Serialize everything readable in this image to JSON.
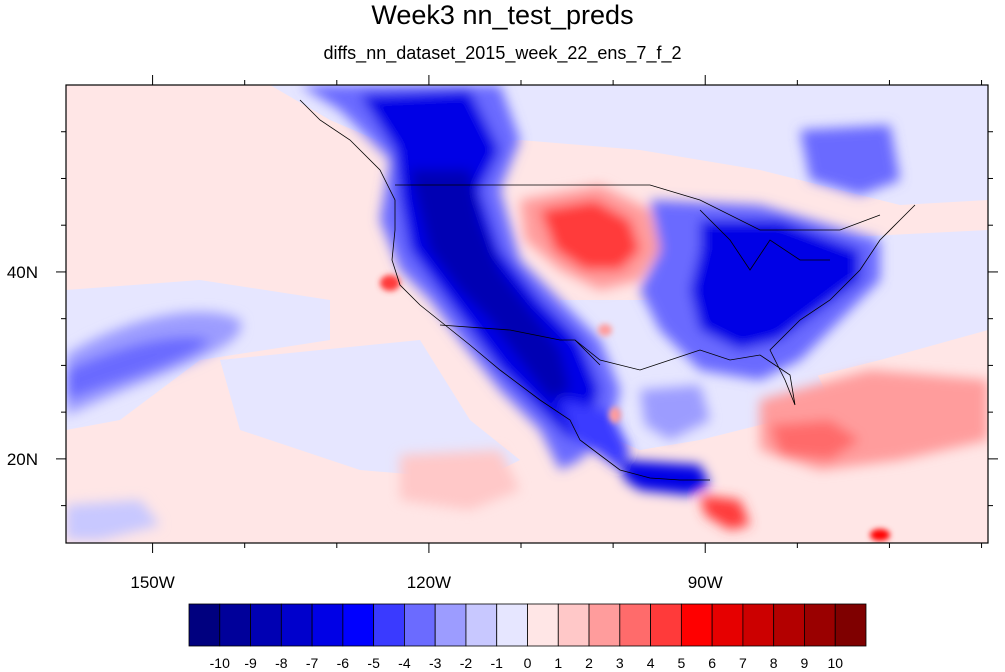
{
  "title": "Week3 nn_test_preds",
  "subtitle": "diffs_nn_dataset_2015_week_22_ens_7_f_2",
  "axes": {
    "x_ticks": [
      {
        "value": -150,
        "label": "150W"
      },
      {
        "value": -120,
        "label": "120W"
      },
      {
        "value": -90,
        "label": "90W"
      }
    ],
    "y_ticks": [
      {
        "value": 20,
        "label": "20N"
      },
      {
        "value": 40,
        "label": "40N"
      }
    ],
    "lon_range": [
      -159.4,
      -59.3
    ],
    "lat_range": [
      11.0,
      60.0
    ]
  },
  "colorbar": {
    "labels": [
      "-10",
      "-9",
      "-8",
      "-7",
      "-6",
      "-5",
      "-4",
      "-3",
      "-2",
      "-1",
      "0",
      "1",
      "2",
      "3",
      "4",
      "5",
      "6",
      "7",
      "8",
      "9",
      "10"
    ],
    "colors": [
      "#00007f",
      "#00009a",
      "#0000b3",
      "#0000cc",
      "#0000e6",
      "#0000ff",
      "#3a3aff",
      "#6b6bff",
      "#9c9cff",
      "#c8c8ff",
      "#e6e6ff",
      "#ffe6e6",
      "#ffc8c8",
      "#ff9c9c",
      "#ff6b6b",
      "#ff3a3a",
      "#ff0000",
      "#e60000",
      "#cc0000",
      "#b30000",
      "#9a0000",
      "#7f0000"
    ]
  },
  "chart_data": {
    "type": "heatmap",
    "title": "Week3 nn_test_preds",
    "subtitle": "diffs_nn_dataset_2015_week_22_ens_7_f_2",
    "xlabel": "",
    "ylabel": "",
    "x_range": [
      -159.4,
      -59.3
    ],
    "y_range": [
      11.0,
      60.0
    ],
    "levels": [
      -10,
      -9,
      -8,
      -7,
      -6,
      -5,
      -4,
      -3,
      -2,
      -1,
      0,
      1,
      2,
      3,
      4,
      5,
      6,
      7,
      8,
      9,
      10
    ],
    "background_value": 0.5,
    "regions": [
      {
        "lon": -115,
        "lat": 38,
        "rx": 12,
        "ry": 14,
        "value": -7.5
      },
      {
        "lon": -117,
        "lat": 46,
        "rx": 7,
        "ry": 6,
        "value": -10
      },
      {
        "lon": -108,
        "lat": 30,
        "rx": 7,
        "ry": 8,
        "value": -8
      },
      {
        "lon": -113,
        "lat": 55,
        "rx": 10,
        "ry": 4,
        "value": -7
      },
      {
        "lon": -103,
        "lat": 43,
        "rx": 6,
        "ry": 3.5,
        "value": 6
      },
      {
        "lon": -83,
        "lat": 38,
        "rx": 10,
        "ry": 6,
        "value": -7
      },
      {
        "lon": -80,
        "lat": 41,
        "rx": 4,
        "ry": 3,
        "value": -9
      },
      {
        "lon": -140,
        "lat": 30,
        "rx": 18,
        "ry": 3,
        "value": -3.5
      },
      {
        "lon": -72,
        "lat": 52,
        "rx": 6,
        "ry": 3,
        "value": -5
      },
      {
        "lon": -85,
        "lat": 20,
        "rx": 12,
        "ry": 2.5,
        "value": 3.5
      },
      {
        "lon": -67,
        "lat": 24,
        "rx": 8,
        "ry": 2,
        "value": 2.5
      },
      {
        "lon": -124,
        "lat": 38.5,
        "rx": 1.5,
        "ry": 1.5,
        "value": 6
      },
      {
        "lon": -97,
        "lat": 16,
        "rx": 3,
        "ry": 1.5,
        "value": -7
      },
      {
        "lon": -86,
        "lat": 13,
        "rx": 1.5,
        "ry": 1.2,
        "value": 7
      },
      {
        "lon": -125,
        "lat": 17,
        "rx": 8,
        "ry": 2,
        "value": 2
      },
      {
        "lon": -103,
        "lat": 35,
        "rx": 1.5,
        "ry": 1.5,
        "value": 4
      },
      {
        "lon": -92,
        "lat": 26,
        "rx": 5,
        "ry": 2,
        "value": -3
      },
      {
        "lon": -135,
        "lat": 55,
        "rx": 8,
        "ry": 4,
        "value": 0.5
      },
      {
        "lon": -145,
        "lat": 45,
        "rx": 12,
        "ry": 10,
        "value": 0.5
      }
    ],
    "grid": false
  }
}
